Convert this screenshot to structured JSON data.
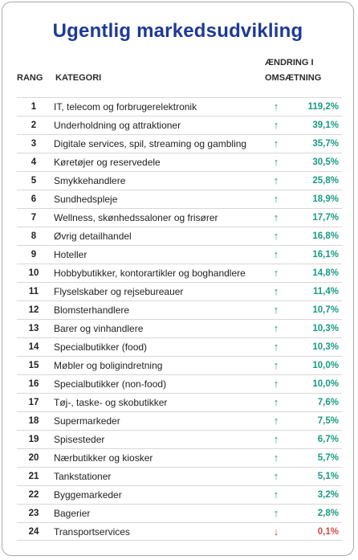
{
  "title": "Ugentlig markedsudvikling",
  "headers": {
    "rank": "RANG",
    "category": "KATEGORI",
    "change_line1": "ÆNDRING I",
    "change_line2": "OMSÆTNING"
  },
  "colors": {
    "title": "#1f3a93",
    "up": "#1a9a83",
    "down": "#d94a4a"
  },
  "rows": [
    {
      "rank": "1",
      "category": "IT, telecom og forbrugerelektronik",
      "direction": "up",
      "arrow": "↑",
      "change": "119,2%"
    },
    {
      "rank": "2",
      "category": "Underholdning og attraktioner",
      "direction": "up",
      "arrow": "↑",
      "change": "39,1%"
    },
    {
      "rank": "3",
      "category": "Digitale services, spil, streaming og gambling",
      "direction": "up",
      "arrow": "↑",
      "change": "35,7%"
    },
    {
      "rank": "4",
      "category": "Køretøjer og reservedele",
      "direction": "up",
      "arrow": "↑",
      "change": "30,5%"
    },
    {
      "rank": "5",
      "category": "Smykkehandlere",
      "direction": "up",
      "arrow": "↑",
      "change": "25,8%"
    },
    {
      "rank": "6",
      "category": "Sundhedspleje",
      "direction": "up",
      "arrow": "↑",
      "change": "18,9%"
    },
    {
      "rank": "7",
      "category": "Wellness, skønhedssaloner og frisører",
      "direction": "up",
      "arrow": "↑",
      "change": "17,7%"
    },
    {
      "rank": "8",
      "category": "Øvrig detailhandel",
      "direction": "up",
      "arrow": "↑",
      "change": "16,8%"
    },
    {
      "rank": "9",
      "category": "Hoteller",
      "direction": "up",
      "arrow": "↑",
      "change": "16,1%"
    },
    {
      "rank": "10",
      "category": "Hobbybutikker, kontorartikler og boghandlere",
      "direction": "up",
      "arrow": "↑",
      "change": "14,8%"
    },
    {
      "rank": "11",
      "category": "Flyselskaber og rejsebureauer",
      "direction": "up",
      "arrow": "↑",
      "change": "11,4%"
    },
    {
      "rank": "12",
      "category": "Blomsterhandlere",
      "direction": "up",
      "arrow": "↑",
      "change": "10,7%"
    },
    {
      "rank": "13",
      "category": "Barer og vinhandlere",
      "direction": "up",
      "arrow": "↑",
      "change": "10,3%"
    },
    {
      "rank": "14",
      "category": "Specialbutikker (food)",
      "direction": "up",
      "arrow": "↑",
      "change": "10,3%"
    },
    {
      "rank": "15",
      "category": "Møbler og boligindretning",
      "direction": "up",
      "arrow": "↑",
      "change": "10,0%"
    },
    {
      "rank": "16",
      "category": "Specialbutikker (non-food)",
      "direction": "up",
      "arrow": "↑",
      "change": "10,0%"
    },
    {
      "rank": "17",
      "category": "Tøj-, taske- og skobutikker",
      "direction": "up",
      "arrow": "↑",
      "change": "7,6%"
    },
    {
      "rank": "18",
      "category": "Supermarkeder",
      "direction": "up",
      "arrow": "↑",
      "change": "7,5%"
    },
    {
      "rank": "19",
      "category": "Spisesteder",
      "direction": "up",
      "arrow": "↑",
      "change": "6,7%"
    },
    {
      "rank": "20",
      "category": "Nærbutikker og kiosker",
      "direction": "up",
      "arrow": "↑",
      "change": "5,7%"
    },
    {
      "rank": "21",
      "category": "Tankstationer",
      "direction": "up",
      "arrow": "↑",
      "change": "5,1%"
    },
    {
      "rank": "22",
      "category": "Byggemarkeder",
      "direction": "up",
      "arrow": "↑",
      "change": "3,2%"
    },
    {
      "rank": "23",
      "category": "Bagerier",
      "direction": "up",
      "arrow": "↑",
      "change": "2,8%"
    },
    {
      "rank": "24",
      "category": "Transportservices",
      "direction": "down",
      "arrow": "↓",
      "change": "0,1%"
    }
  ]
}
